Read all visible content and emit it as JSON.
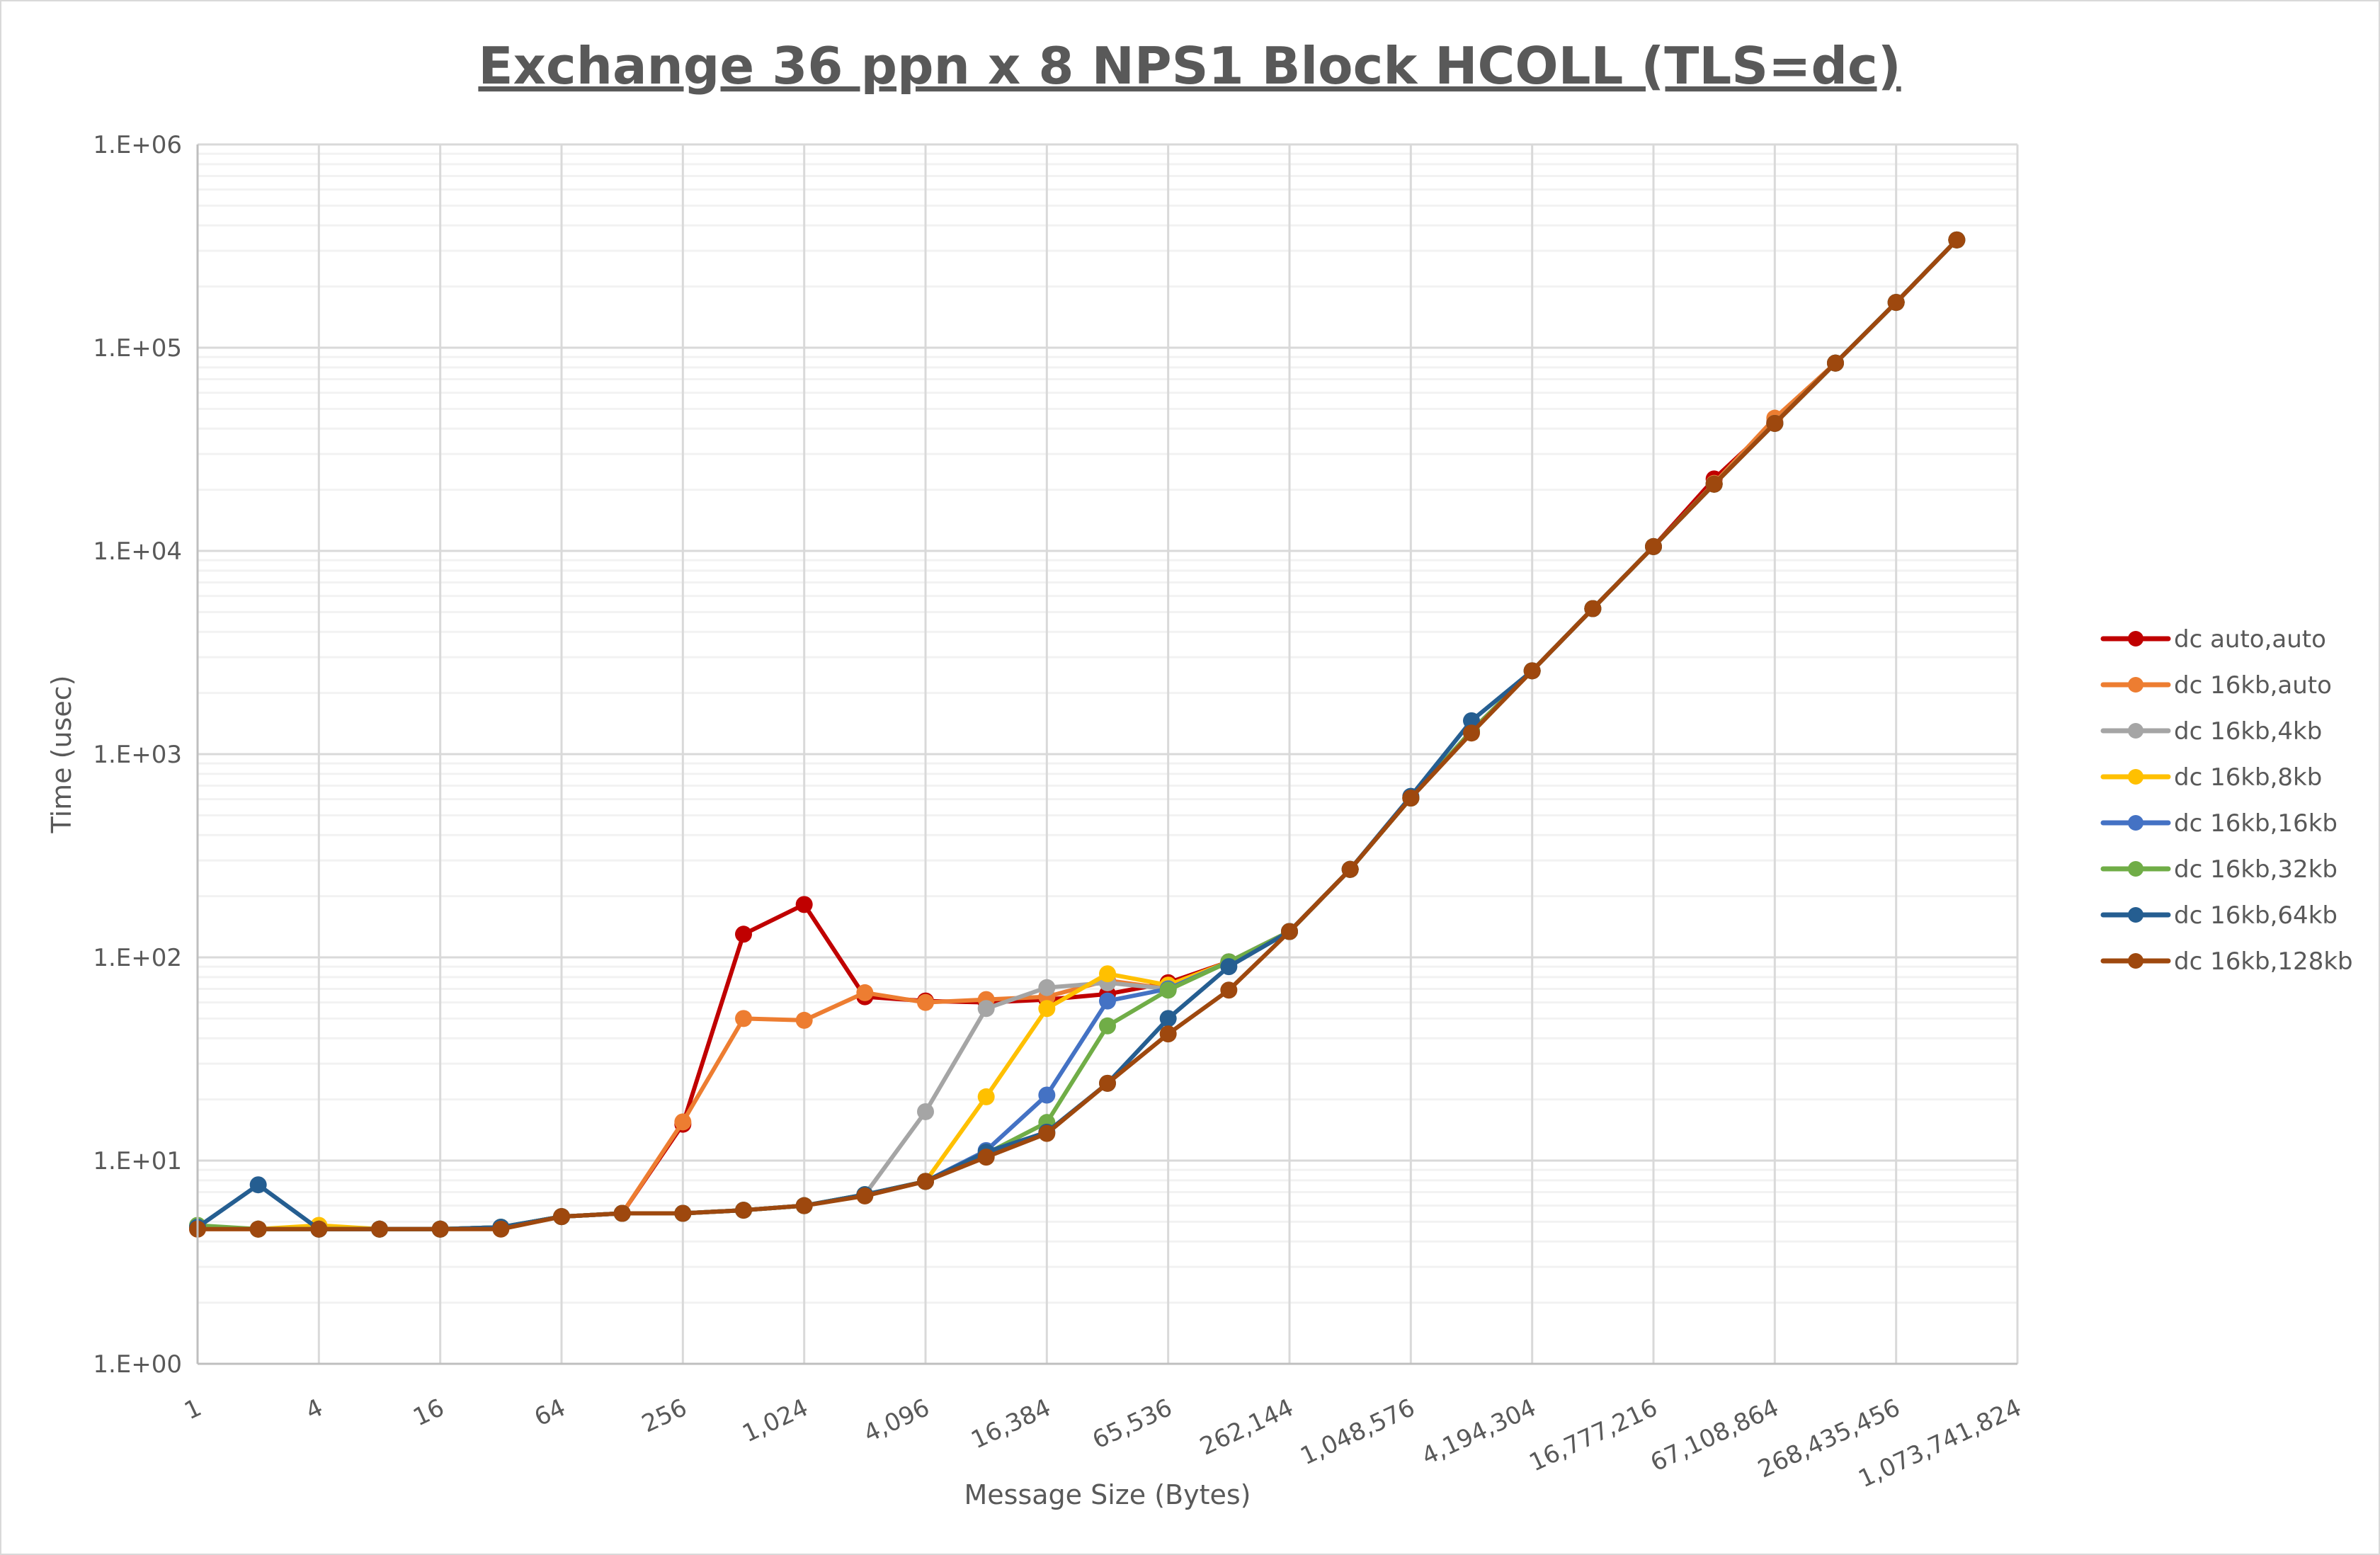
{
  "chart_data": {
    "type": "line",
    "title": "Exchange 36 ppn x 8 NPS1 Block HCOLL (TLS=dc)",
    "xlabel": "Message Size (Bytes)",
    "ylabel": "Time (usec)",
    "x_scale": "log2",
    "y_scale": "log10",
    "xlim": [
      1,
      1073741824
    ],
    "ylim": [
      1,
      1000000
    ],
    "grid": true,
    "legend_position": "right",
    "x_tick_labels": [
      "1",
      "4",
      "16",
      "64",
      "256",
      "1,024",
      "4,096",
      "16,384",
      "65,536",
      "262,144",
      "1,048,576",
      "4,194,304",
      "16,777,216",
      "67,108,864",
      "268,435,456",
      "1,073,741,824"
    ],
    "y_tick_labels": [
      "1.E+00",
      "1.E+01",
      "1.E+02",
      "1.E+03",
      "1.E+04",
      "1.E+05",
      "1.E+06"
    ],
    "x": [
      1,
      2,
      4,
      8,
      16,
      32,
      64,
      128,
      256,
      512,
      1024,
      2048,
      4096,
      8192,
      16384,
      32768,
      65536,
      131072,
      262144,
      524288,
      1048576,
      2097152,
      4194304,
      8388608,
      16777216,
      33554432,
      67108864,
      134217728,
      268435456,
      536870912
    ],
    "series": [
      {
        "name": "dc auto,auto",
        "color": "#c00000",
        "values": [
          4.7,
          4.6,
          4.6,
          4.6,
          4.6,
          4.7,
          5.3,
          5.5,
          15.1,
          130,
          182,
          64,
          61,
          60,
          62,
          66,
          75,
          95,
          134,
          271,
          608,
          1300,
          2570,
          5200,
          10500,
          22600,
          43000,
          84000,
          167000,
          339000
        ]
      },
      {
        "name": "dc 16kb,auto",
        "color": "#ed7d31",
        "values": [
          4.6,
          4.6,
          4.7,
          4.6,
          4.6,
          4.7,
          5.3,
          5.5,
          15.5,
          50,
          49,
          67,
          60,
          62,
          64,
          77,
          70,
          95,
          134,
          271,
          608,
          1300,
          2570,
          5200,
          10500,
          21500,
          45000,
          84000,
          167000,
          339000
        ]
      },
      {
        "name": "dc 16kb,4kb",
        "color": "#a5a5a5",
        "values": [
          4.7,
          4.6,
          4.6,
          4.6,
          4.6,
          4.7,
          5.3,
          5.5,
          5.5,
          5.7,
          6.0,
          6.8,
          17.4,
          56,
          71,
          75,
          70,
          95,
          134,
          271,
          608,
          1300,
          2570,
          5200,
          10500,
          21300,
          42400,
          84000,
          167000,
          339000
        ]
      },
      {
        "name": "dc 16kb,8kb",
        "color": "#ffc000",
        "values": [
          4.7,
          4.6,
          4.8,
          4.6,
          4.6,
          4.7,
          5.3,
          5.5,
          5.5,
          5.7,
          6.0,
          6.8,
          7.9,
          20.6,
          56,
          83,
          73,
          95,
          134,
          271,
          608,
          1300,
          2570,
          5200,
          10500,
          21300,
          42400,
          84000,
          167000,
          339000
        ]
      },
      {
        "name": "dc 16kb,16kb",
        "color": "#4472c4",
        "values": [
          4.7,
          4.6,
          4.6,
          4.6,
          4.6,
          4.7,
          5.3,
          5.5,
          5.5,
          5.7,
          6.0,
          6.8,
          7.9,
          11.2,
          21,
          61,
          70,
          95,
          134,
          271,
          608,
          1300,
          2570,
          5200,
          10500,
          21300,
          42400,
          84000,
          167000,
          339000
        ]
      },
      {
        "name": "dc 16kb,32kb",
        "color": "#70ad47",
        "values": [
          4.8,
          4.6,
          4.6,
          4.6,
          4.6,
          4.7,
          5.3,
          5.5,
          5.5,
          5.7,
          6.0,
          6.8,
          7.9,
          10.8,
          15.4,
          46,
          69,
          95,
          134,
          271,
          608,
          1300,
          2570,
          5200,
          10500,
          21300,
          42400,
          84000,
          167000,
          339000
        ]
      },
      {
        "name": "dc 16kb,64kb",
        "color": "#255e91",
        "values": [
          4.7,
          7.6,
          4.6,
          4.6,
          4.6,
          4.7,
          5.3,
          5.5,
          5.5,
          5.7,
          6.0,
          6.8,
          7.9,
          11,
          13.8,
          24,
          50,
          90,
          134,
          271,
          620,
          1460,
          2570,
          5200,
          10500,
          21300,
          42400,
          84000,
          167000,
          339000
        ]
      },
      {
        "name": "dc 16kb,128kb",
        "color": "#9e480e",
        "values": [
          4.6,
          4.6,
          4.6,
          4.6,
          4.6,
          4.6,
          5.3,
          5.5,
          5.5,
          5.7,
          6.0,
          6.7,
          7.9,
          10.4,
          13.6,
          24,
          42,
          69,
          134,
          271,
          608,
          1270,
          2570,
          5200,
          10500,
          21300,
          42400,
          84000,
          167000,
          339000
        ]
      }
    ]
  }
}
